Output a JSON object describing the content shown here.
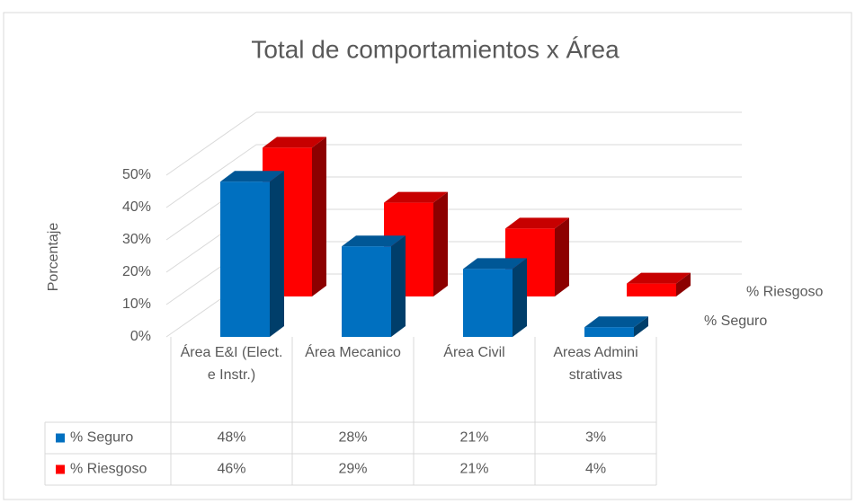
{
  "chart_data": {
    "type": "bar3d",
    "title": "Total de comportamientos x Área",
    "y_label": "Porcentaje",
    "categories": [
      "Área E&I (Elect. e Instr.)",
      "Área Mecanico",
      "Área Civil",
      "Areas Administrativas"
    ],
    "series": [
      {
        "name": "% Seguro",
        "color": "#0070c0",
        "values": [
          48,
          28,
          21,
          3
        ],
        "value_labels": [
          "48%",
          "28%",
          "21%",
          "3%"
        ]
      },
      {
        "name": "% Riesgoso",
        "color": "#ff0000",
        "values": [
          46,
          29,
          21,
          4
        ],
        "value_labels": [
          "46%",
          "29%",
          "21%",
          "4%"
        ]
      }
    ],
    "ylim": [
      0,
      50
    ],
    "yticks": [
      {
        "value": 0,
        "label": "0%"
      },
      {
        "value": 10,
        "label": "10%"
      },
      {
        "value": 20,
        "label": "20%"
      },
      {
        "value": 30,
        "label": "30%"
      },
      {
        "value": 40,
        "label": "40%"
      },
      {
        "value": 50,
        "label": "50%"
      }
    ],
    "grid": true
  }
}
